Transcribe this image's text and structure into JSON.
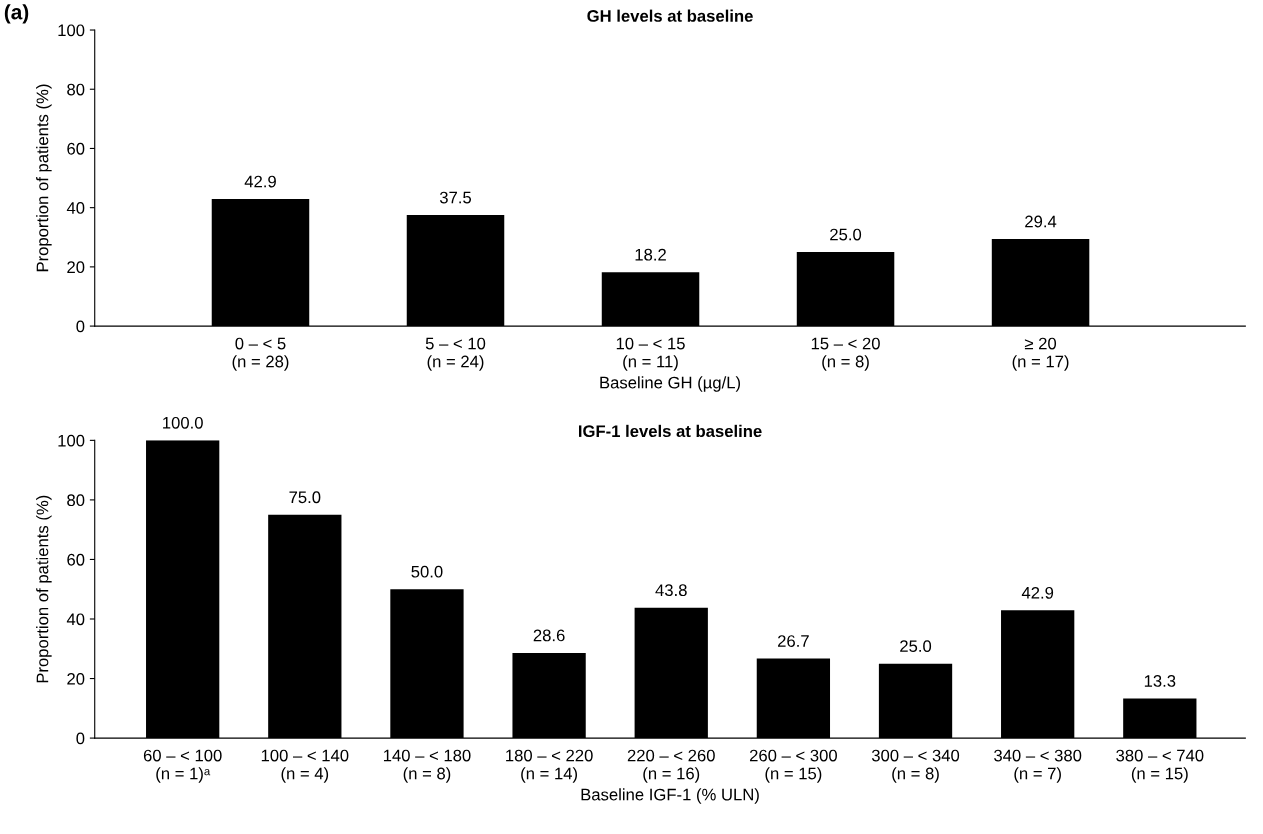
{
  "chart_data": [
    {
      "type": "bar",
      "title": "GH levels at baseline",
      "xlabel": "Baseline GH (µg/L)",
      "ylabel": "Proportion of patients (%)",
      "annotations": [
        "(a)"
      ],
      "categories": [
        "0 – < 5\n(n = 28)",
        "5 – < 10\n(n = 24)",
        "10 – < 15\n(n = 11)",
        "15 – < 20\n(n = 8)",
        "≥ 20\n(n = 17)"
      ],
      "values": [
        42.9,
        37.5,
        18.2,
        25.0,
        29.4
      ],
      "value_labels": [
        "42.9",
        "37.5",
        "18.2",
        "25.0",
        "29.4"
      ],
      "color": "#000000",
      "ylim": [
        0,
        100
      ],
      "yticks": [
        0,
        20,
        40,
        60,
        80,
        100
      ],
      "grid": false,
      "legend": false
    },
    {
      "type": "bar",
      "title": "IGF-1 levels at baseline",
      "xlabel": "Baseline IGF-1 (% ULN)",
      "ylabel": "Proportion of patients (%)",
      "categories": [
        "60 – < 100\n(n = 1)ᵃ",
        "100 – < 140\n(n = 4)",
        "140 – < 180\n(n = 8)",
        "180 – < 220\n(n = 14)",
        "220 – < 260\n(n = 16)",
        "260 – < 300\n(n = 15)",
        "300 – < 340\n(n = 8)",
        "340 – < 380\n(n = 7)",
        "380 – < 740\n(n = 15)"
      ],
      "values": [
        100.0,
        75.0,
        50.0,
        28.6,
        43.8,
        26.7,
        25.0,
        42.9,
        13.3
      ],
      "value_labels": [
        "100.0",
        "75.0",
        "50.0",
        "28.6",
        "43.8",
        "26.7",
        "25.0",
        "42.9",
        "13.3"
      ],
      "color": "#000000",
      "ylim": [
        0,
        100
      ],
      "yticks": [
        0,
        20,
        40,
        60,
        80,
        100
      ],
      "grid": false,
      "legend": false
    }
  ]
}
